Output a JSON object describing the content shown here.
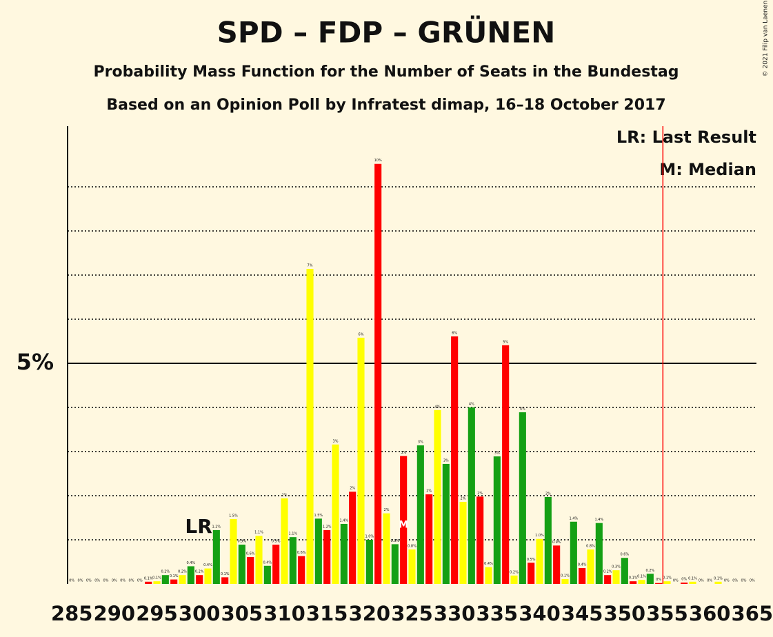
{
  "chart_data": {
    "type": "bar",
    "title": "SPD – FDP – GRÜNEN",
    "subtitle": "Probability Mass Function for the Number of Seats in the Bundestag",
    "subtitle2": "Based on an Opinion Poll by Infratest dimap, 16–18 October 2017",
    "x": [
      285,
      286,
      287,
      288,
      289,
      290,
      291,
      292,
      293,
      294,
      295,
      296,
      297,
      298,
      299,
      300,
      301,
      302,
      303,
      304,
      305,
      306,
      307,
      308,
      309,
      310,
      311,
      312,
      313,
      314,
      315,
      316,
      317,
      318,
      319,
      320,
      321,
      322,
      323,
      324,
      325,
      326,
      327,
      328,
      329,
      330,
      331,
      332,
      333,
      334,
      335,
      336,
      337,
      338,
      339,
      340,
      341,
      342,
      343,
      344,
      345,
      346,
      347,
      348,
      349,
      350,
      351,
      352,
      353,
      354,
      355,
      356,
      357,
      358,
      359,
      360,
      361,
      362,
      363,
      364,
      365
    ],
    "values": [
      0,
      0,
      0,
      0,
      0,
      0,
      0,
      0,
      0,
      0.05,
      0.06,
      0.2,
      0.1,
      0.2,
      0.4,
      0.2,
      0.35,
      1.22,
      0.15,
      1.47,
      0.89,
      0.61,
      1.09,
      0.41,
      0.89,
      1.94,
      1.06,
      0.63,
      7.14,
      1.48,
      1.22,
      3.16,
      1.36,
      2.09,
      5.58,
      1.0,
      9.52,
      1.6,
      0.9,
      2.9,
      0.78,
      3.14,
      2.03,
      3.94,
      2.72,
      5.61,
      1.86,
      4.0,
      1.98,
      0.38,
      2.89,
      5.41,
      0.19,
      3.89,
      0.48,
      1.02,
      1.97,
      0.87,
      0.11,
      1.41,
      0.36,
      0.78,
      1.38,
      0.2,
      0.31,
      0.59,
      0.06,
      0.09,
      0.23,
      0.02,
      0.06,
      0,
      0.03,
      0.05,
      0,
      0,
      0.05,
      0,
      0,
      0,
      0
    ],
    "value_labels": [
      "0%",
      "0%",
      "0%",
      "0%",
      "0%",
      "0%",
      "0%",
      "0%",
      "0%",
      "0.1%",
      "0.1%",
      "0.2%",
      "0.1%",
      "0.2%",
      "0.4%",
      "0.2%",
      "0.4%",
      "1.2%",
      "0.1%",
      "1.5%",
      "0.9%",
      "0.6%",
      "1.1%",
      "0.4%",
      "0.9%",
      "2%",
      "1.1%",
      "0.6%",
      "7%",
      "1.5%",
      "1.2%",
      "3%",
      "1.4%",
      "2%",
      "6%",
      "1.0%",
      "10%",
      "2%",
      "0.9%",
      "3%",
      "0.8%",
      "3%",
      "2%",
      "4%",
      "3%",
      "6%",
      "2%",
      "4%",
      "2%",
      "0.4%",
      "3%",
      "5%",
      "0.2%",
      "4%",
      "0.5%",
      "1.0%",
      "2%",
      "0.9%",
      "0.1%",
      "1.4%",
      "0.4%",
      "0.8%",
      "1.4%",
      "0.2%",
      "0.3%",
      "0.6%",
      "0.1%",
      "0.1%",
      "0.2%",
      "0%",
      "0.1%",
      "0%",
      "0%",
      "0.1%",
      "0%",
      "0%",
      "0.1%",
      "0%",
      "0%",
      "0%",
      "0%"
    ],
    "colors": [
      "#ff0000",
      "#ffff00",
      "#14a014"
    ],
    "xlim": [
      284.5,
      365.5
    ],
    "xticks": [
      285,
      290,
      295,
      300,
      305,
      310,
      315,
      320,
      325,
      330,
      335,
      340,
      345,
      350,
      355,
      360,
      365
    ],
    "ylim": [
      0,
      10.375
    ],
    "yticks": [
      {
        "value": 5,
        "label": "5%"
      }
    ],
    "grid_lines": [
      1,
      2,
      3,
      4,
      6,
      7,
      8,
      9
    ],
    "last_result": {
      "x": 302,
      "label": "LR"
    },
    "median": {
      "x": 324,
      "label": "M"
    },
    "majority": 354.5,
    "legend": [
      "LR: Last Result",
      "M: Median"
    ],
    "copyright": "© 2021 Filip van Laenen"
  }
}
